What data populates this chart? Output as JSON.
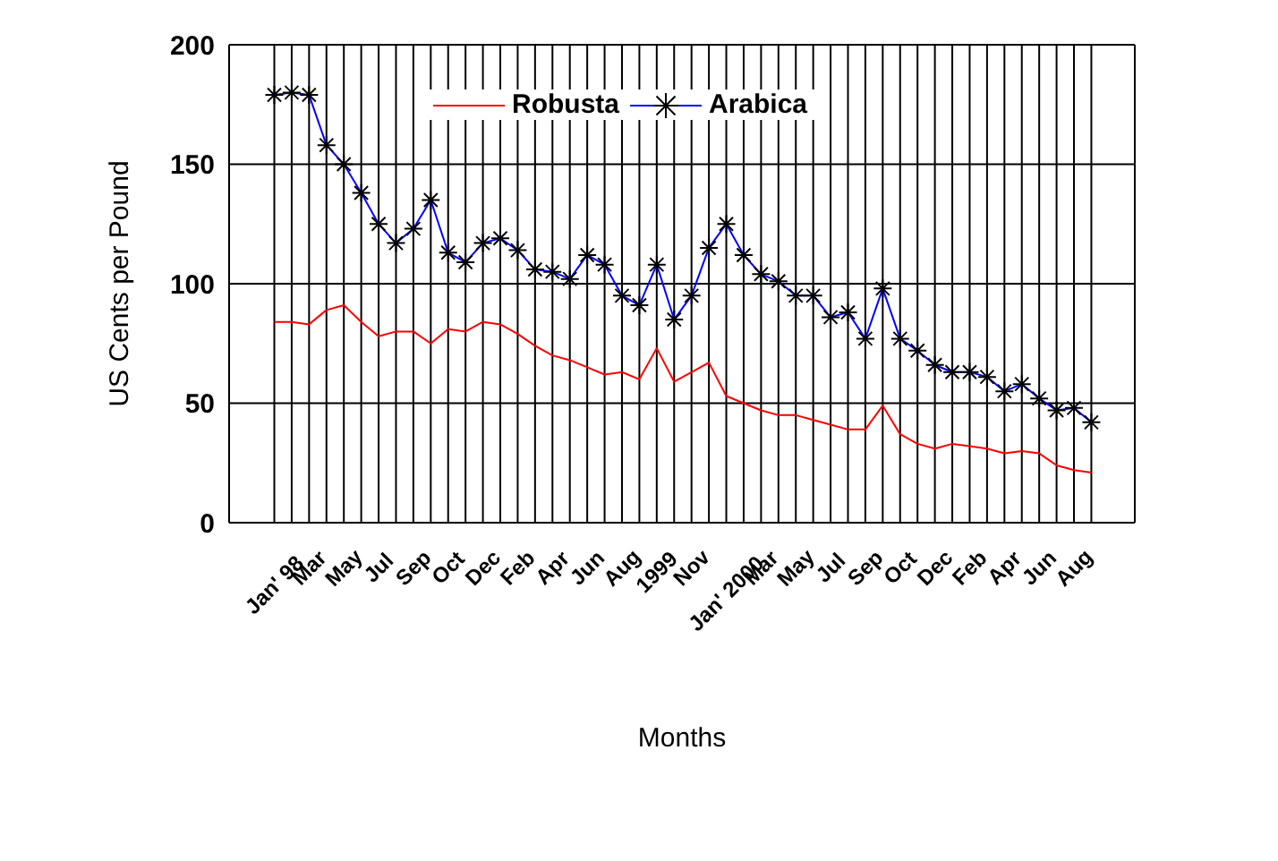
{
  "chart_data": {
    "type": "line",
    "xlabel": "Months",
    "ylabel": "US Cents per Pound",
    "categories": [
      "Jan' 98",
      null,
      "Mar",
      null,
      "May",
      null,
      "Jul",
      null,
      "Sep",
      null,
      "Oct",
      null,
      "Dec",
      null,
      "Feb",
      null,
      "Apr",
      null,
      "Jun",
      null,
      "Aug",
      null,
      "1999",
      null,
      "Nov",
      null,
      "Jan' 2000",
      null,
      "Mar",
      null,
      "May",
      null,
      "Jul",
      null,
      "Sep",
      null,
      "Oct",
      null,
      "Dec",
      null,
      "Feb",
      null,
      "Apr",
      null,
      "Jun",
      null,
      "Aug",
      null
    ],
    "series": [
      {
        "name": "Robusta",
        "color": "#ff0000",
        "marker": "none",
        "values": [
          84,
          84,
          83,
          89,
          91,
          84,
          78,
          80,
          80,
          75,
          81,
          80,
          84,
          83,
          79,
          74,
          70,
          68,
          65,
          62,
          63,
          60,
          73,
          59,
          63,
          67,
          53,
          50,
          47,
          45,
          45,
          43,
          41,
          39,
          39,
          49,
          37,
          33,
          31,
          33,
          32,
          31,
          29,
          30,
          29,
          24,
          22,
          21
        ]
      },
      {
        "name": "Arabica",
        "color": "#0000ff",
        "marker": "cross",
        "values": [
          179,
          180,
          179,
          158,
          150,
          138,
          125,
          117,
          123,
          135,
          113,
          109,
          117,
          119,
          114,
          106,
          105,
          102,
          112,
          108,
          95,
          91,
          108,
          85,
          95,
          115,
          125,
          112,
          104,
          101,
          95,
          95,
          86,
          88,
          77,
          98,
          77,
          72,
          66,
          63,
          63,
          61,
          55,
          58,
          52,
          47,
          48,
          42
        ]
      }
    ],
    "ylim": [
      0,
      200
    ],
    "yticks": [
      0,
      50,
      100,
      150,
      200
    ],
    "grid": true,
    "legend": "top",
    "line_style": "solid"
  }
}
